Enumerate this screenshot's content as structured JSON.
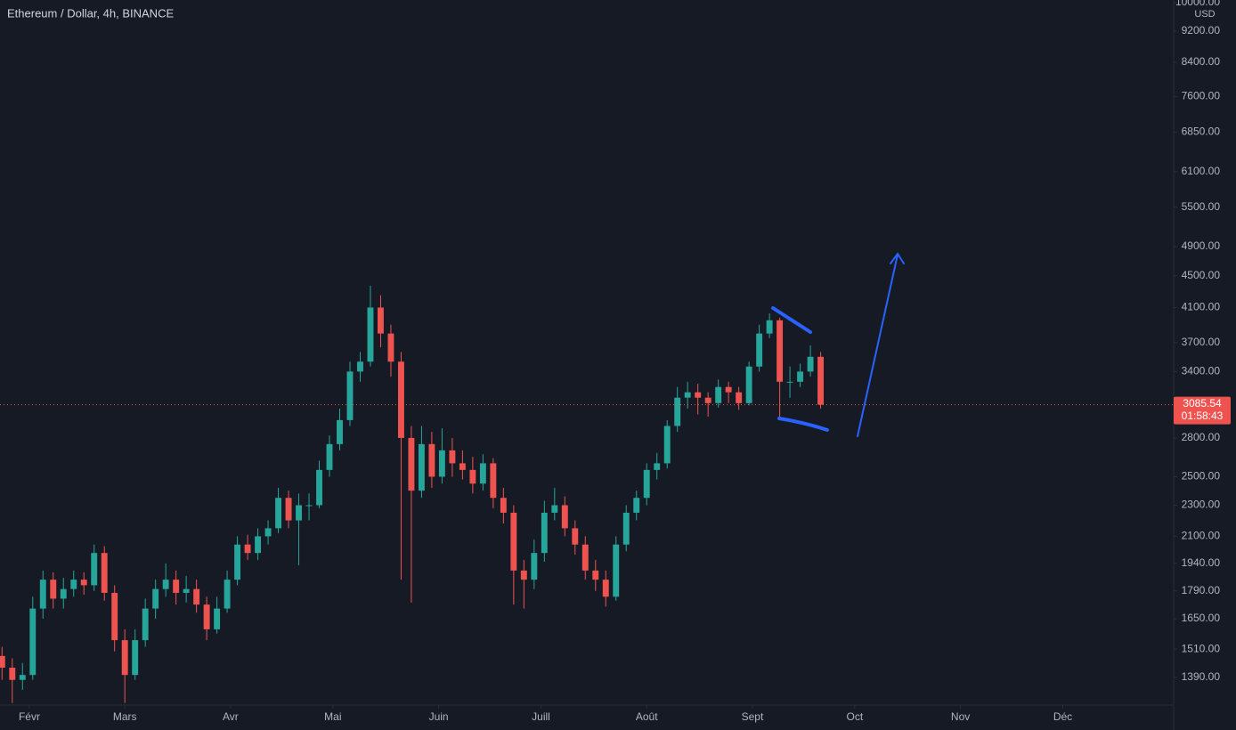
{
  "chart_data": {
    "type": "candlestick",
    "title": "Ethereum / Dollar, 4h, BINANCE",
    "y_unit": "USD",
    "countdown": "01:58:43",
    "log_scale": true,
    "grid": false,
    "up_color": "#26a69a",
    "down_color": "#ef5350",
    "x": [
      24,
      27,
      30,
      33,
      36,
      39,
      42,
      45,
      48,
      51,
      54,
      57,
      60,
      63,
      66,
      69,
      72,
      75,
      78,
      81,
      84,
      87,
      90,
      93,
      96,
      99,
      102,
      105,
      108,
      111,
      114,
      117,
      120,
      123,
      126,
      129,
      132,
      135,
      138,
      141,
      144,
      147,
      150,
      153,
      156,
      159,
      162,
      165,
      168,
      171,
      174,
      177,
      180,
      183,
      186,
      189,
      192,
      195,
      198,
      201,
      204,
      207,
      210,
      213,
      216,
      219,
      222,
      225,
      228,
      231,
      234,
      237,
      240,
      243,
      246,
      249,
      252,
      255,
      258,
      261,
      264
    ],
    "open": [
      1480,
      1430,
      1380,
      1400,
      1700,
      1850,
      1750,
      1800,
      1850,
      1820,
      2000,
      1780,
      1550,
      1400,
      1550,
      1700,
      1800,
      1850,
      1780,
      1800,
      1720,
      1600,
      1700,
      1850,
      2050,
      2000,
      2100,
      2150,
      2350,
      2200,
      2300,
      2300,
      2550,
      2750,
      2950,
      3400,
      3500,
      4100,
      3800,
      3500,
      2800,
      2400,
      2750,
      2500,
      2700,
      2600,
      2550,
      2450,
      2600,
      2350,
      2250,
      1900,
      1850,
      2000,
      2250,
      2300,
      2150,
      2050,
      1900,
      1850,
      1760,
      2050,
      2250,
      2350,
      2550,
      2600,
      2900,
      3150,
      3200,
      3150,
      3100,
      3250,
      3200,
      3100,
      3450,
      3800,
      3950,
      3300,
      3300,
      3400,
      3550
    ],
    "high": [
      1520,
      1470,
      1450,
      1760,
      1900,
      1890,
      1860,
      1900,
      1890,
      2050,
      2040,
      1820,
      1600,
      1600,
      1750,
      1850,
      1940,
      1900,
      1870,
      1850,
      1760,
      1760,
      1900,
      2100,
      2110,
      2150,
      2200,
      2420,
      2400,
      2380,
      2380,
      2620,
      2820,
      3050,
      3500,
      3600,
      4370,
      4250,
      3900,
      3600,
      2900,
      2900,
      2850,
      2880,
      2800,
      2700,
      2650,
      2670,
      2640,
      2420,
      2300,
      1960,
      2080,
      2330,
      2420,
      2360,
      2200,
      2100,
      1960,
      1900,
      2100,
      2300,
      2400,
      2600,
      2680,
      2950,
      3250,
      3300,
      3280,
      3200,
      3320,
      3300,
      3250,
      3500,
      3900,
      4030,
      3980,
      3450,
      3480,
      3670,
      3600
    ],
    "low": [
      1380,
      1290,
      1340,
      1380,
      1650,
      1700,
      1700,
      1760,
      1770,
      1790,
      1740,
      1500,
      1290,
      1380,
      1520,
      1650,
      1760,
      1720,
      1730,
      1680,
      1550,
      1580,
      1680,
      1820,
      1960,
      1960,
      2050,
      2120,
      2150,
      1930,
      2200,
      2280,
      2500,
      2700,
      2900,
      3300,
      3450,
      3650,
      3350,
      1850,
      1730,
      2350,
      2420,
      2450,
      2500,
      2480,
      2380,
      2400,
      2280,
      2180,
      1720,
      1700,
      1800,
      1950,
      2200,
      2100,
      1990,
      1850,
      1790,
      1710,
      1740,
      2010,
      2200,
      2300,
      2480,
      2560,
      2850,
      3050,
      3000,
      2980,
      3060,
      3100,
      3040,
      3080,
      3400,
      3750,
      2950,
      3150,
      3250,
      3350,
      3050
    ],
    "close": [
      1430,
      1380,
      1400,
      1700,
      1850,
      1750,
      1800,
      1850,
      1820,
      2000,
      1780,
      1550,
      1400,
      1550,
      1700,
      1800,
      1850,
      1780,
      1800,
      1720,
      1600,
      1700,
      1850,
      2050,
      2000,
      2100,
      2150,
      2350,
      2200,
      2300,
      2300,
      2550,
      2750,
      2950,
      3400,
      3500,
      4100,
      3800,
      3500,
      2800,
      2400,
      2750,
      2500,
      2700,
      2600,
      2550,
      2450,
      2600,
      2350,
      2250,
      1900,
      1850,
      2000,
      2250,
      2300,
      2150,
      2050,
      1900,
      1850,
      1760,
      2050,
      2250,
      2350,
      2550,
      2600,
      2900,
      3150,
      3200,
      3150,
      3100,
      3250,
      3200,
      3100,
      3450,
      3800,
      3950,
      3300,
      3300,
      3400,
      3550,
      3085.54
    ],
    "xlim": [
      23.4,
      367.5
    ],
    "xticks": [
      {
        "value": 32,
        "label": "Févr"
      },
      {
        "value": 60,
        "label": "Mars"
      },
      {
        "value": 91,
        "label": "Avr"
      },
      {
        "value": 121,
        "label": "Mai"
      },
      {
        "value": 152,
        "label": "Juin"
      },
      {
        "value": 182,
        "label": "Juill"
      },
      {
        "value": 213,
        "label": "Août"
      },
      {
        "value": 244,
        "label": "Sept"
      },
      {
        "value": 274,
        "label": "Oct"
      },
      {
        "value": 305,
        "label": "Nov"
      },
      {
        "value": 335,
        "label": "Déc"
      }
    ],
    "ylim": [
      1282,
      10078
    ],
    "yticks": [
      {
        "value": 10000,
        "label": "10000.00"
      },
      {
        "value": 9200,
        "label": "9200.00"
      },
      {
        "value": 8400,
        "label": "8400.00"
      },
      {
        "value": 7600,
        "label": "7600.00"
      },
      {
        "value": 6850,
        "label": "6850.00"
      },
      {
        "value": 6100,
        "label": "6100.00"
      },
      {
        "value": 5500,
        "label": "5500.00"
      },
      {
        "value": 4900,
        "label": "4900.00"
      },
      {
        "value": 4500,
        "label": "4500.00"
      },
      {
        "value": 4100,
        "label": "4100.00"
      },
      {
        "value": 3700,
        "label": "3700.00"
      },
      {
        "value": 3400,
        "label": "3400.00"
      },
      {
        "value": 2800,
        "label": "2800.00"
      },
      {
        "value": 2500,
        "label": "2500.00"
      },
      {
        "value": 2300,
        "label": "2300.00"
      },
      {
        "value": 2100,
        "label": "2100.00"
      },
      {
        "value": 1940,
        "label": "1940.00"
      },
      {
        "value": 1790,
        "label": "1790.00"
      },
      {
        "value": 1650,
        "label": "1650.00"
      },
      {
        "value": 1510,
        "label": "1510.00"
      },
      {
        "value": 1390,
        "label": "1390.00"
      }
    ]
  }
}
